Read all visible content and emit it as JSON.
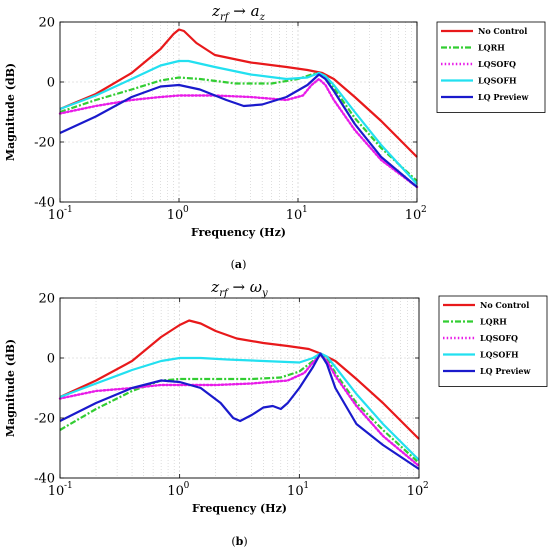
{
  "colors": {
    "No Control": "#e8191b",
    "LQRH": "#32cd32",
    "LQSOFQ": "#e81ce8",
    "LQSOFH": "#22e0f0",
    "LQ Preview": "#1a1acc"
  },
  "dash": {
    "No Control": "solid",
    "LQRH": "dashdot",
    "LQSOFQ": "dotted",
    "LQSOFH": "solid",
    "LQ Preview": "solid"
  },
  "chart_data": [
    {
      "type": "line",
      "title": "z_rf → a_z",
      "title_parts": {
        "var1": "z",
        "sub1": "rf",
        "arrow": "→",
        "var2": "a",
        "sub2": "z"
      },
      "caption": "(a)",
      "xlabel": "Frequency (Hz)",
      "ylabel": "Magnitude (dB)",
      "xscale": "log",
      "xlim": [
        0.1,
        100
      ],
      "ylim": [
        -40,
        20
      ],
      "xticks": [
        0.1,
        1,
        10,
        100
      ],
      "xtick_labels": [
        "10",
        "10",
        "10",
        "10"
      ],
      "xtick_exponents": [
        "-1",
        "0",
        "1",
        "2"
      ],
      "yticks": [
        -40,
        -20,
        0,
        20
      ],
      "ytick_labels": [
        "-40",
        "-20",
        "0",
        "20"
      ],
      "grid": true,
      "legend_position": "outside-right",
      "series": [
        {
          "name": "No Control",
          "points": [
            [
              0.1,
              -9
            ],
            [
              0.2,
              -4
            ],
            [
              0.4,
              3
            ],
            [
              0.7,
              11
            ],
            [
              0.9,
              16
            ],
            [
              1,
              17.5
            ],
            [
              1.1,
              17
            ],
            [
              1.4,
              13
            ],
            [
              2,
              9
            ],
            [
              4,
              6.5
            ],
            [
              8,
              5
            ],
            [
              12,
              4
            ],
            [
              16,
              3
            ],
            [
              20,
              1
            ],
            [
              30,
              -5
            ],
            [
              50,
              -13
            ],
            [
              100,
              -25
            ]
          ]
        },
        {
          "name": "LQRH",
          "points": [
            [
              0.1,
              -10
            ],
            [
              0.2,
              -6
            ],
            [
              0.4,
              -2.5
            ],
            [
              0.7,
              0.5
            ],
            [
              1,
              1.5
            ],
            [
              1.5,
              1
            ],
            [
              3,
              -0.5
            ],
            [
              6,
              -0.5
            ],
            [
              10,
              1
            ],
            [
              13,
              2.5
            ],
            [
              15,
              3
            ],
            [
              17,
              1.5
            ],
            [
              20,
              -2
            ],
            [
              30,
              -12
            ],
            [
              50,
              -22
            ],
            [
              100,
              -33
            ]
          ]
        },
        {
          "name": "LQSOFQ",
          "points": [
            [
              0.1,
              -10.5
            ],
            [
              0.2,
              -8
            ],
            [
              0.4,
              -6
            ],
            [
              0.7,
              -5
            ],
            [
              1,
              -4.5
            ],
            [
              2,
              -4.5
            ],
            [
              4,
              -5
            ],
            [
              8,
              -6
            ],
            [
              11,
              -4.5
            ],
            [
              13,
              -1
            ],
            [
              15,
              1
            ],
            [
              17,
              -1
            ],
            [
              20,
              -6
            ],
            [
              30,
              -16
            ],
            [
              50,
              -26
            ],
            [
              100,
              -35
            ]
          ]
        },
        {
          "name": "LQSOFH",
          "points": [
            [
              0.1,
              -9
            ],
            [
              0.2,
              -4.5
            ],
            [
              0.4,
              1
            ],
            [
              0.7,
              5.5
            ],
            [
              1,
              7
            ],
            [
              1.2,
              7
            ],
            [
              2,
              5
            ],
            [
              4,
              2.5
            ],
            [
              8,
              1
            ],
            [
              12,
              1.5
            ],
            [
              15,
              3
            ],
            [
              17,
              2
            ],
            [
              20,
              -1
            ],
            [
              30,
              -10
            ],
            [
              50,
              -21
            ],
            [
              100,
              -34
            ]
          ]
        },
        {
          "name": "LQ Preview",
          "points": [
            [
              0.1,
              -17
            ],
            [
              0.2,
              -11.5
            ],
            [
              0.4,
              -5
            ],
            [
              0.7,
              -1.5
            ],
            [
              1,
              -1
            ],
            [
              1.5,
              -2.5
            ],
            [
              2.5,
              -6
            ],
            [
              3.5,
              -8
            ],
            [
              5,
              -7.5
            ],
            [
              8,
              -5
            ],
            [
              12,
              -1
            ],
            [
              15,
              2.5
            ],
            [
              17,
              1
            ],
            [
              20,
              -3
            ],
            [
              30,
              -14
            ],
            [
              50,
              -25
            ],
            [
              100,
              -35
            ]
          ]
        }
      ]
    },
    {
      "type": "line",
      "title": "z_rf → ω_y",
      "title_parts": {
        "var1": "z",
        "sub1": "rf",
        "arrow": "→",
        "var2": "ω",
        "sub2": "y"
      },
      "caption": "(b)",
      "xlabel": "Frequency (Hz)",
      "ylabel": "Magnitude (dB)",
      "xscale": "log",
      "xlim": [
        0.1,
        100
      ],
      "ylim": [
        -40,
        20
      ],
      "xticks": [
        0.1,
        1,
        10,
        100
      ],
      "xtick_labels": [
        "10",
        "10",
        "10",
        "10"
      ],
      "xtick_exponents": [
        "-1",
        "0",
        "1",
        "2"
      ],
      "yticks": [
        -40,
        -20,
        0,
        20
      ],
      "ytick_labels": [
        "-40",
        "-20",
        "0",
        "20"
      ],
      "grid": true,
      "legend_position": "outside-right",
      "series": [
        {
          "name": "No Control",
          "points": [
            [
              0.1,
              -13
            ],
            [
              0.2,
              -7.5
            ],
            [
              0.4,
              -1
            ],
            [
              0.7,
              7
            ],
            [
              1,
              11
            ],
            [
              1.2,
              12.5
            ],
            [
              1.5,
              11.5
            ],
            [
              2,
              9
            ],
            [
              3,
              6.5
            ],
            [
              5,
              5
            ],
            [
              8,
              4
            ],
            [
              12,
              3
            ],
            [
              15,
              1.5
            ],
            [
              20,
              -1
            ],
            [
              30,
              -7
            ],
            [
              50,
              -15
            ],
            [
              100,
              -27
            ]
          ]
        },
        {
          "name": "LQRH",
          "points": [
            [
              0.1,
              -24
            ],
            [
              0.2,
              -17
            ],
            [
              0.4,
              -11
            ],
            [
              0.7,
              -7.5
            ],
            [
              1,
              -7
            ],
            [
              2,
              -7
            ],
            [
              4,
              -7
            ],
            [
              7,
              -6.5
            ],
            [
              10,
              -4.5
            ],
            [
              13,
              -1
            ],
            [
              15,
              1.5
            ],
            [
              17,
              0
            ],
            [
              20,
              -5
            ],
            [
              30,
              -15
            ],
            [
              50,
              -24
            ],
            [
              100,
              -35
            ]
          ]
        },
        {
          "name": "LQSOFQ",
          "points": [
            [
              0.1,
              -13.5
            ],
            [
              0.2,
              -11
            ],
            [
              0.4,
              -10
            ],
            [
              0.7,
              -9
            ],
            [
              1,
              -9
            ],
            [
              2,
              -9
            ],
            [
              4,
              -8.5
            ],
            [
              8,
              -7.5
            ],
            [
              11,
              -5
            ],
            [
              13,
              -1.5
            ],
            [
              15,
              1
            ],
            [
              17,
              -1
            ],
            [
              20,
              -6
            ],
            [
              30,
              -16
            ],
            [
              50,
              -26
            ],
            [
              100,
              -36
            ]
          ]
        },
        {
          "name": "LQSOFH",
          "points": [
            [
              0.1,
              -13
            ],
            [
              0.2,
              -8.5
            ],
            [
              0.4,
              -4
            ],
            [
              0.7,
              -1
            ],
            [
              1,
              0
            ],
            [
              1.5,
              0
            ],
            [
              2.5,
              -0.5
            ],
            [
              5,
              -1
            ],
            [
              10,
              -1.5
            ],
            [
              13,
              0
            ],
            [
              15,
              1.5
            ],
            [
              17,
              0.5
            ],
            [
              20,
              -3
            ],
            [
              30,
              -12
            ],
            [
              50,
              -22
            ],
            [
              100,
              -34
            ]
          ]
        },
        {
          "name": "LQ Preview",
          "points": [
            [
              0.1,
              -21
            ],
            [
              0.2,
              -15
            ],
            [
              0.4,
              -10
            ],
            [
              0.7,
              -7.5
            ],
            [
              1,
              -8
            ],
            [
              1.5,
              -10
            ],
            [
              2.2,
              -15
            ],
            [
              2.8,
              -20
            ],
            [
              3.2,
              -21
            ],
            [
              4,
              -19
            ],
            [
              5,
              -16.5
            ],
            [
              6,
              -16
            ],
            [
              7,
              -17
            ],
            [
              8,
              -15
            ],
            [
              10,
              -10
            ],
            [
              13,
              -3
            ],
            [
              15,
              1.5
            ],
            [
              17,
              -2
            ],
            [
              20,
              -10
            ],
            [
              30,
              -22
            ],
            [
              50,
              -29
            ],
            [
              100,
              -37
            ]
          ]
        }
      ]
    }
  ]
}
